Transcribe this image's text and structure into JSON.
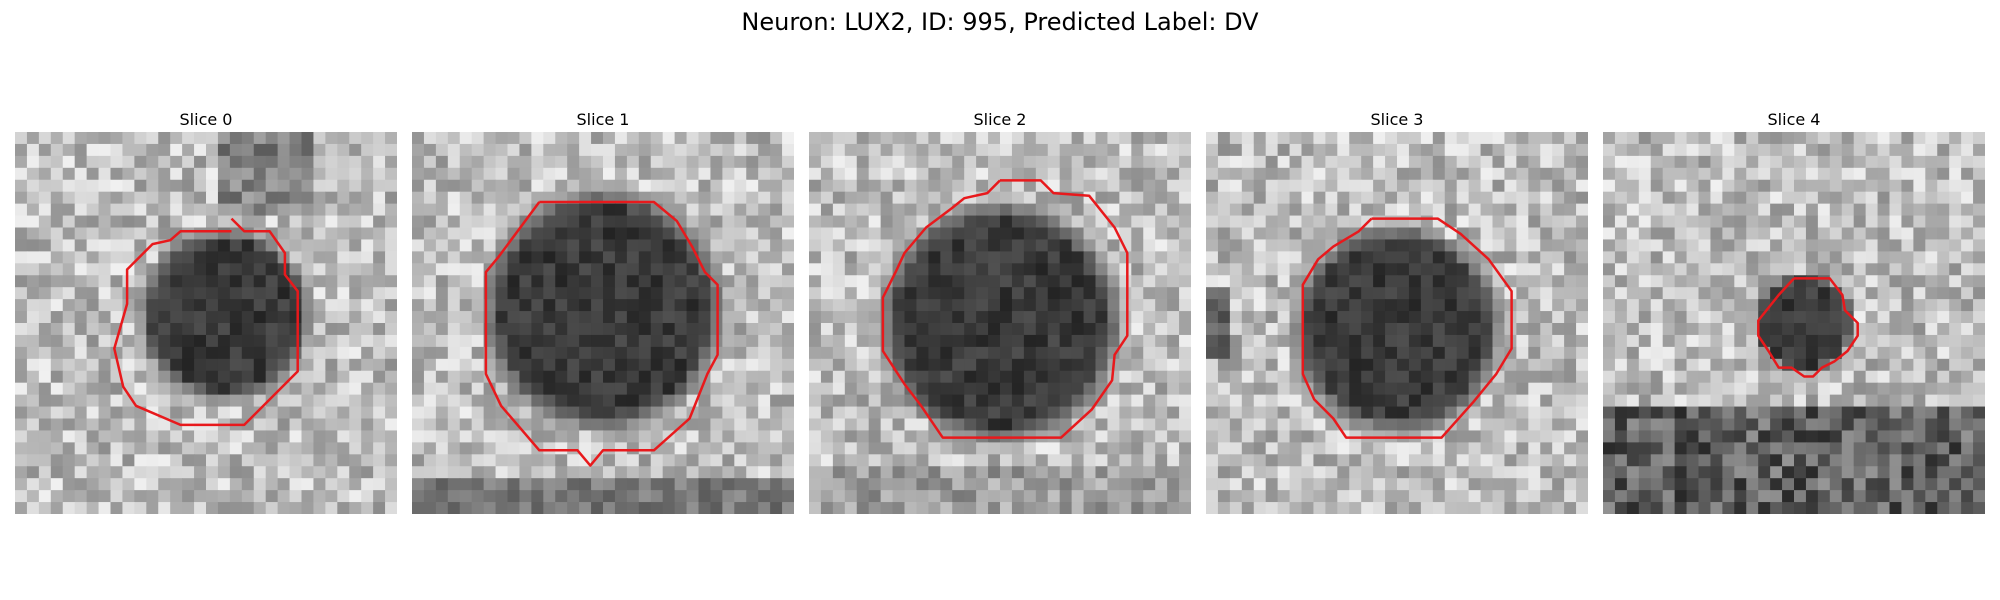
{
  "figure": {
    "title": "Neuron: LUX2, ID: 995, Predicted Label: DV"
  },
  "contour_color": "#e8191c",
  "panels": [
    {
      "title": "Slice 0"
    },
    {
      "title": "Slice 1"
    },
    {
      "title": "Slice 2"
    },
    {
      "title": "Slice 3"
    },
    {
      "title": "Slice 4"
    }
  ]
}
